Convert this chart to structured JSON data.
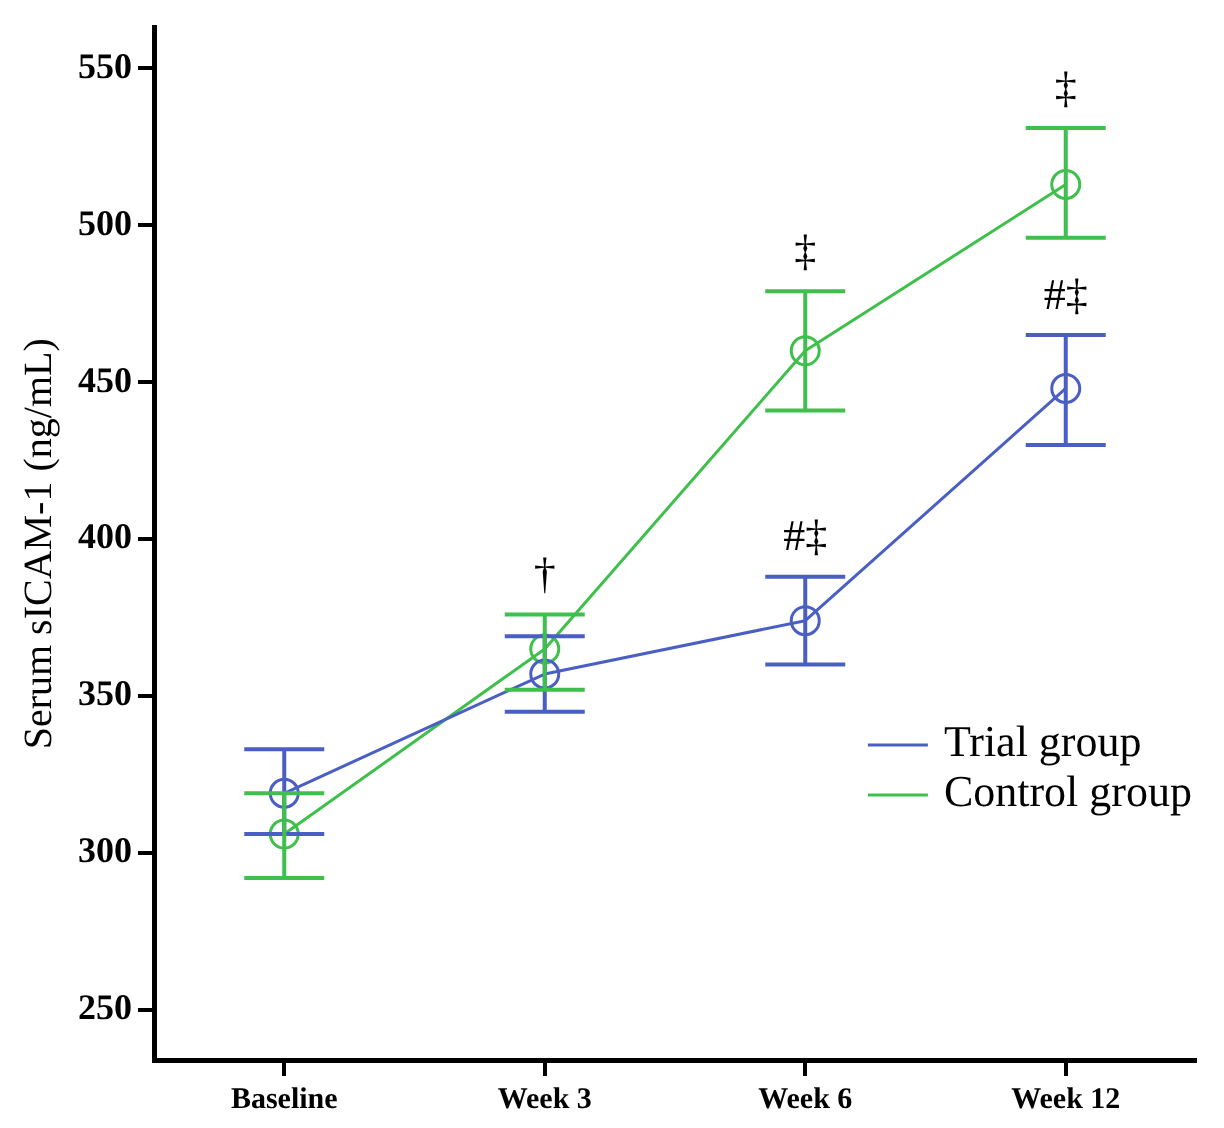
{
  "chart_data": {
    "type": "line",
    "ylabel": "Serum sICAM-1 (ng/mL)",
    "categories": [
      "Baseline",
      "Week 3",
      "Week 6",
      "Week 12"
    ],
    "series": [
      {
        "name": "Trial group",
        "color": "#4a5fc4",
        "values": [
          319,
          357,
          374,
          448
        ],
        "errors": [
          [
            306,
            333
          ],
          [
            345,
            369
          ],
          [
            360,
            388
          ],
          [
            430,
            465
          ]
        ]
      },
      {
        "name": "Control group",
        "color": "#3fbf4c",
        "values": [
          306,
          365,
          460,
          513
        ],
        "errors": [
          [
            292,
            319
          ],
          [
            352,
            376
          ],
          [
            441,
            479
          ],
          [
            496,
            531
          ]
        ]
      }
    ],
    "ylim": [
      234,
      563
    ],
    "yticks": [
      250,
      300,
      350,
      400,
      450,
      500,
      550
    ],
    "grid": false,
    "legend": "right",
    "marker": "circle",
    "line_style": "solid",
    "annotations": [
      {
        "text": "†",
        "x": "Week 3",
        "y": 365
      },
      {
        "text": "#‡",
        "x": "Week 6",
        "y": 374
      },
      {
        "text": "‡",
        "x": "Week 6",
        "y": 460
      },
      {
        "text": "#‡",
        "x": "Week 12",
        "y": 448
      },
      {
        "text": "‡",
        "x": "Week 12",
        "y": 513
      }
    ]
  }
}
